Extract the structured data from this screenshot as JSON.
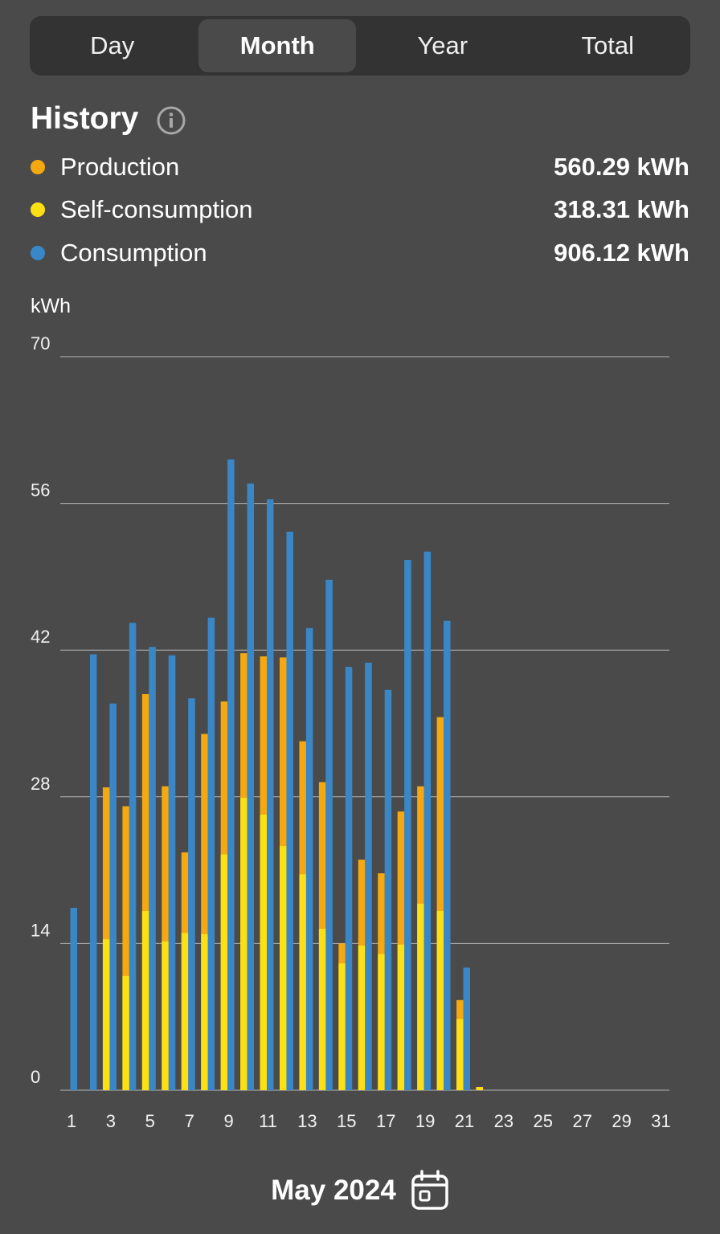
{
  "tabs": [
    "Day",
    "Month",
    "Year",
    "Total"
  ],
  "active_tab": "Month",
  "history_title": "History",
  "legend": [
    {
      "label": "Production",
      "value": "560.29 kWh",
      "color": "#f5a80f"
    },
    {
      "label": "Self-consumption",
      "value": "318.31 kWh",
      "color": "#fde013"
    },
    {
      "label": "Consumption",
      "value": "906.12 kWh",
      "color": "#3a87c7"
    }
  ],
  "unit_label": "kWh",
  "month_label": "May 2024",
  "icons": {
    "info": "info-icon",
    "calendar": "calendar-icon"
  },
  "chart_data": {
    "type": "bar",
    "ylabel": "kWh",
    "ylim": [
      0,
      70
    ],
    "yticks": [
      0,
      14,
      28,
      42,
      56,
      70
    ],
    "xticks": [
      1,
      3,
      5,
      7,
      9,
      11,
      13,
      15,
      17,
      19,
      21,
      23,
      25,
      27,
      29,
      31
    ],
    "grid": true,
    "x": [
      1,
      2,
      3,
      4,
      5,
      6,
      7,
      8,
      9,
      10,
      11,
      12,
      13,
      14,
      15,
      16,
      17,
      18,
      19,
      20,
      21,
      22,
      23,
      24,
      25,
      26,
      27,
      28,
      29,
      30,
      31
    ],
    "series": [
      {
        "name": "Consumption",
        "color": "#3a87c7",
        "values": [
          17.4,
          41.6,
          36.9,
          44.6,
          42.3,
          41.5,
          37.4,
          45.1,
          60.2,
          57.9,
          56.4,
          53.3,
          44.1,
          48.7,
          40.4,
          40.8,
          38.2,
          50.6,
          51.4,
          44.8,
          11.7,
          0,
          0,
          0,
          0,
          0,
          0,
          0,
          0,
          0,
          0
        ]
      },
      {
        "name": "Production",
        "color": "#f5a80f",
        "values": [
          0,
          28.9,
          27.1,
          37.8,
          29.0,
          22.7,
          34.0,
          37.1,
          41.7,
          41.4,
          41.3,
          33.3,
          29.4,
          14.0,
          22.0,
          20.7,
          26.6,
          29.0,
          35.6,
          8.6,
          0.3,
          0,
          0,
          0,
          0,
          0,
          0,
          0,
          0,
          0,
          0
        ]
      },
      {
        "name": "Self-consumption",
        "color": "#fde013",
        "values": [
          0,
          14.4,
          10.9,
          17.1,
          14.2,
          15.0,
          14.9,
          22.5,
          27.9,
          26.3,
          23.3,
          20.6,
          15.4,
          12.1,
          13.8,
          13.0,
          13.9,
          17.8,
          17.1,
          6.8,
          0.3,
          0,
          0,
          0,
          0,
          0,
          0,
          0,
          0,
          0,
          0
        ]
      }
    ]
  }
}
